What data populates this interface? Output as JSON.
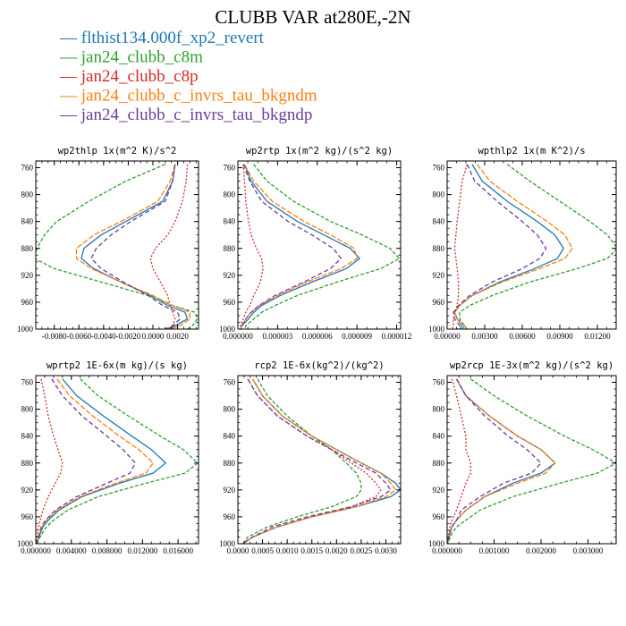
{
  "title": "CLUBB VAR at280E,-2N",
  "legend": [
    {
      "marker": "—",
      "label": "flthist134.000f_xp2_revert",
      "color": "#1f77b4"
    },
    {
      "marker": "—",
      "label": "jan24_clubb_c8m",
      "color": "#2ca02c"
    },
    {
      "marker": "—",
      "label": "jan24_clubb_c8p",
      "color": "#d62728"
    },
    {
      "marker": "—",
      "label": "jan24_clubb_c_invrs_tau_bkgndm",
      "color": "#ff7f0e"
    },
    {
      "marker": "—",
      "label": "jan24_clubb_c_invrs_tau_bkgndp",
      "color": "#6a3d9a"
    }
  ],
  "chart_data": [
    {
      "type": "line",
      "title": "wp2thlp  1x(m^2 K)/s^2",
      "xlim": [
        -0.0095,
        0.0037
      ],
      "ylim": [
        1000,
        750
      ],
      "xticks": [
        -0.008,
        -0.006,
        -0.004,
        -0.002,
        0.0,
        0.002
      ],
      "xtick_labels": [
        "-0.0080",
        "-0.0060",
        "-0.0040",
        "-0.0020",
        "0.0000",
        "0.0020"
      ],
      "yticks": [
        760,
        800,
        840,
        880,
        920,
        960,
        1000
      ],
      "ytick_labels": [
        "760",
        "800",
        "840",
        "880",
        "920",
        "960",
        "1000"
      ],
      "y": [
        755,
        780,
        810,
        840,
        860,
        880,
        895,
        910,
        930,
        950,
        965,
        975,
        985,
        995,
        1000
      ],
      "series": [
        {
          "x": [
            0.0018,
            0.0016,
            0.0008,
            -0.0022,
            -0.0042,
            -0.0056,
            -0.0058,
            -0.0048,
            -0.0026,
            -0.0002,
            0.0012,
            0.0026,
            0.0028,
            0.0018,
            0.0012
          ],
          "color": "#1f77b4",
          "dash": ""
        },
        {
          "x": [
            0.001,
            -0.0022,
            -0.0052,
            -0.0078,
            -0.0088,
            -0.0094,
            -0.0096,
            -0.008,
            -0.0042,
            -0.0004,
            0.0016,
            0.0034,
            0.0036,
            0.0032,
            0.0028
          ],
          "color": "#2ca02c",
          "dash": "4,2"
        },
        {
          "x": [
            0.0028,
            0.0027,
            0.0024,
            0.0018,
            0.0012,
            0.0002,
            -0.0002,
            0.0,
            0.0006,
            0.0012,
            0.0014,
            0.0016,
            0.0018,
            0.0016,
            0.0012
          ],
          "color": "#d62728",
          "dash": "2,2"
        },
        {
          "x": [
            0.0018,
            0.0014,
            0.0004,
            -0.0026,
            -0.0048,
            -0.0062,
            -0.0062,
            -0.005,
            -0.0026,
            0.0,
            0.0016,
            0.003,
            0.003,
            0.0022,
            0.0014
          ],
          "color": "#ff7f0e",
          "dash": "6,2"
        },
        {
          "x": [
            0.0018,
            0.0016,
            0.001,
            -0.0018,
            -0.0034,
            -0.0046,
            -0.005,
            -0.0042,
            -0.0024,
            -0.0004,
            0.0008,
            0.002,
            0.0022,
            0.0016,
            0.001
          ],
          "color": "#6a3d9a",
          "dash": "5,3"
        }
      ]
    },
    {
      "type": "line",
      "title": "wp2rtp  1x(m^2 kg)/(s^2 kg)",
      "xlim": [
        0.0,
        1.23e-05
      ],
      "ylim": [
        1000,
        750
      ],
      "xticks": [
        0.0,
        3e-06,
        6e-06,
        9e-06,
        1.2e-05
      ],
      "xtick_labels": [
        "0.000000",
        "0.000003",
        "0.000006",
        "0.000009",
        "0.000012"
      ],
      "yticks": [
        760,
        800,
        840,
        880,
        920,
        960,
        1000
      ],
      "ytick_labels": [
        "760",
        "800",
        "840",
        "880",
        "920",
        "960",
        "1000"
      ],
      "y": [
        755,
        780,
        810,
        840,
        860,
        880,
        895,
        910,
        930,
        950,
        965,
        975,
        985,
        995,
        1000
      ],
      "series": [
        {
          "x": [
            5e-07,
            1e-06,
            2.2e-06,
            4.5e-06,
            6.5e-06,
            8.5e-06,
            9.2e-06,
            8.2e-06,
            5.6e-06,
            3.2e-06,
            1.8e-06,
            1.2e-06,
            8e-07,
            3e-07,
            2e-07
          ],
          "color": "#1f77b4",
          "dash": ""
        },
        {
          "x": [
            1.2e-06,
            2.2e-06,
            4.2e-06,
            7e-06,
            9.4e-06,
            1.15e-05,
            1.22e-05,
            1.08e-05,
            7.5e-06,
            4.5e-06,
            2.8e-06,
            1.8e-06,
            1.2e-06,
            6e-07,
            5e-07
          ],
          "color": "#2ca02c",
          "dash": "4,2"
        },
        {
          "x": [
            4e-07,
            5e-07,
            6e-07,
            8e-07,
            1e-06,
            1.4e-06,
            1.8e-06,
            1.9e-06,
            1.7e-06,
            1.2e-06,
            9e-07,
            6e-07,
            4e-07,
            2e-07,
            2e-07
          ],
          "color": "#d62728",
          "dash": "2,2"
        },
        {
          "x": [
            5e-07,
            1.2e-06,
            2.6e-06,
            5e-06,
            7e-06,
            8.8e-06,
            9e-06,
            7.8e-06,
            5.2e-06,
            3e-06,
            1.6e-06,
            1e-06,
            6e-07,
            3e-07,
            2e-07
          ],
          "color": "#ff7f0e",
          "dash": "6,2"
        },
        {
          "x": [
            4e-07,
            9e-07,
            1.8e-06,
            3.8e-06,
            5.6e-06,
            7.2e-06,
            7.8e-06,
            7e-06,
            5e-06,
            2.8e-06,
            1.6e-06,
            1e-06,
            6e-07,
            3e-07,
            2e-07
          ],
          "color": "#6a3d9a",
          "dash": "5,3"
        }
      ]
    },
    {
      "type": "line",
      "title": "wpthlp2  1x(m K^2)/s",
      "xlim": [
        0.0,
        0.0135
      ],
      "ylim": [
        1000,
        750
      ],
      "xticks": [
        0.0,
        0.003,
        0.006,
        0.009,
        0.012
      ],
      "xtick_labels": [
        "0.00000",
        "0.00300",
        "0.00600",
        "0.00900",
        "0.01200"
      ],
      "yticks": [
        760,
        800,
        840,
        880,
        920,
        960,
        1000
      ],
      "ytick_labels": [
        "760",
        "800",
        "840",
        "880",
        "920",
        "960",
        "1000"
      ],
      "y": [
        755,
        780,
        810,
        840,
        860,
        880,
        895,
        910,
        930,
        950,
        965,
        975,
        985,
        995,
        1000
      ],
      "series": [
        {
          "x": [
            0.002,
            0.0028,
            0.0048,
            0.0072,
            0.0086,
            0.0093,
            0.0088,
            0.007,
            0.0042,
            0.002,
            0.001,
            0.0006,
            0.0008,
            0.0012,
            0.001
          ],
          "color": "#1f77b4",
          "dash": ""
        },
        {
          "x": [
            0.0048,
            0.0066,
            0.009,
            0.0114,
            0.0128,
            0.0136,
            0.0128,
            0.0104,
            0.0066,
            0.0036,
            0.0018,
            0.001,
            0.001,
            0.0014,
            0.0012
          ],
          "color": "#2ca02c",
          "dash": "4,2"
        },
        {
          "x": [
            0.0016,
            0.0012,
            0.001,
            0.0008,
            0.0007,
            0.0006,
            0.0007,
            0.0008,
            0.0009,
            0.0009,
            0.0008,
            0.0006,
            0.0005,
            0.0005,
            0.0004
          ],
          "color": "#d62728",
          "dash": "2,2"
        },
        {
          "x": [
            0.0024,
            0.0034,
            0.0056,
            0.008,
            0.0094,
            0.01,
            0.0094,
            0.0074,
            0.0044,
            0.002,
            0.001,
            0.0006,
            0.0008,
            0.0014,
            0.0016
          ],
          "color": "#ff7f0e",
          "dash": "6,2"
        },
        {
          "x": [
            0.0016,
            0.0022,
            0.004,
            0.006,
            0.0072,
            0.0079,
            0.0074,
            0.006,
            0.0036,
            0.0018,
            0.0009,
            0.0005,
            0.0006,
            0.001,
            0.0008
          ],
          "color": "#6a3d9a",
          "dash": "5,3"
        }
      ]
    },
    {
      "type": "line",
      "title": "wprtp2  1E-6x(m kg)/(s kg)",
      "xlim": [
        0.0,
        0.0183
      ],
      "ylim": [
        1000,
        750
      ],
      "xticks": [
        0.0,
        0.004,
        0.008,
        0.012,
        0.016
      ],
      "xtick_labels": [
        "0.000000",
        "0.004000",
        "0.008000",
        "0.012000",
        "0.016000"
      ],
      "yticks": [
        760,
        800,
        840,
        880,
        920,
        960,
        1000
      ],
      "ytick_labels": [
        "760",
        "800",
        "840",
        "880",
        "920",
        "960",
        "1000"
      ],
      "y": [
        755,
        780,
        810,
        840,
        860,
        880,
        895,
        910,
        930,
        950,
        965,
        975,
        985,
        995,
        1000
      ],
      "series": [
        {
          "x": [
            0.003,
            0.0046,
            0.0076,
            0.0108,
            0.013,
            0.0146,
            0.0132,
            0.0094,
            0.0052,
            0.0026,
            0.0014,
            0.0008,
            0.0005,
            0.0002,
            0.0001
          ],
          "color": "#1f77b4",
          "dash": ""
        },
        {
          "x": [
            0.005,
            0.007,
            0.0104,
            0.014,
            0.0166,
            0.0182,
            0.0168,
            0.0124,
            0.007,
            0.0036,
            0.002,
            0.0012,
            0.0007,
            0.0003,
            0.0002
          ],
          "color": "#2ca02c",
          "dash": "4,2"
        },
        {
          "x": [
            0.0006,
            0.001,
            0.0014,
            0.002,
            0.0025,
            0.003,
            0.0028,
            0.0022,
            0.0014,
            0.0008,
            0.0005,
            0.0003,
            0.0002,
            0.0001,
            0.0001
          ],
          "color": "#d62728",
          "dash": "2,2"
        },
        {
          "x": [
            0.0024,
            0.0038,
            0.0064,
            0.0094,
            0.0116,
            0.0132,
            0.0124,
            0.009,
            0.005,
            0.0024,
            0.0012,
            0.0007,
            0.0004,
            0.0002,
            0.0001
          ],
          "color": "#ff7f0e",
          "dash": "6,2"
        },
        {
          "x": [
            0.0018,
            0.003,
            0.0052,
            0.008,
            0.0098,
            0.0112,
            0.0106,
            0.008,
            0.0046,
            0.0022,
            0.0011,
            0.0006,
            0.0004,
            0.0002,
            0.0001
          ],
          "color": "#6a3d9a",
          "dash": "5,3"
        }
      ]
    },
    {
      "type": "line",
      "title": "rcp2  1E-6x(kg^2)/(kg^2)",
      "xlim": [
        0.0,
        0.0033
      ],
      "ylim": [
        1000,
        750
      ],
      "xticks": [
        0.0,
        0.0005,
        0.001,
        0.0015,
        0.002,
        0.0025,
        0.003
      ],
      "xtick_labels": [
        "0.0000",
        "0.0005",
        "0.0010",
        "0.0015",
        "0.0020",
        "0.0025",
        "0.0030"
      ],
      "yticks": [
        760,
        800,
        840,
        880,
        920,
        960,
        1000
      ],
      "ytick_labels": [
        "760",
        "800",
        "840",
        "880",
        "920",
        "960",
        "1000"
      ],
      "y": [
        755,
        780,
        810,
        840,
        860,
        880,
        895,
        910,
        920,
        930,
        945,
        960,
        975,
        990,
        1000
      ],
      "series": [
        {
          "x": [
            0.0003,
            0.0005,
            0.0009,
            0.0015,
            0.002,
            0.0025,
            0.0029,
            0.0032,
            0.0033,
            0.0031,
            0.0024,
            0.0015,
            0.0008,
            0.0003,
            0.0001
          ],
          "color": "#1f77b4",
          "dash": ""
        },
        {
          "x": [
            0.0004,
            0.0006,
            0.001,
            0.0015,
            0.0019,
            0.0022,
            0.0024,
            0.0025,
            0.0025,
            0.0024,
            0.0019,
            0.0012,
            0.0006,
            0.0002,
            0.0001
          ],
          "color": "#2ca02c",
          "dash": "4,2"
        },
        {
          "x": [
            0.0002,
            0.0004,
            0.0008,
            0.0014,
            0.0019,
            0.0023,
            0.0026,
            0.0028,
            0.0029,
            0.0028,
            0.0023,
            0.0015,
            0.0008,
            0.0003,
            0.0001
          ],
          "color": "#d62728",
          "dash": "2,2"
        },
        {
          "x": [
            0.0003,
            0.0005,
            0.0009,
            0.0015,
            0.002,
            0.0025,
            0.0029,
            0.0031,
            0.0032,
            0.003,
            0.0024,
            0.0015,
            0.0008,
            0.0003,
            0.0001
          ],
          "color": "#ff7f0e",
          "dash": "6,2"
        },
        {
          "x": [
            0.0002,
            0.0004,
            0.0008,
            0.0014,
            0.0019,
            0.0024,
            0.0028,
            0.003,
            0.0031,
            0.0029,
            0.0023,
            0.0014,
            0.0007,
            0.0003,
            0.0001
          ],
          "color": "#6a3d9a",
          "dash": "5,3"
        }
      ]
    },
    {
      "type": "line",
      "title": "wp2rcp  1E-3x(m^2 kg)/(s^2 kg)",
      "xlim": [
        0.0,
        0.0036
      ],
      "ylim": [
        1000,
        750
      ],
      "xticks": [
        0.0,
        0.001,
        0.002,
        0.003
      ],
      "xtick_labels": [
        "0.000000",
        "0.001000",
        "0.002000",
        "0.003000"
      ],
      "yticks": [
        760,
        800,
        840,
        880,
        920,
        960,
        1000
      ],
      "ytick_labels": [
        "760",
        "800",
        "840",
        "880",
        "920",
        "960",
        "1000"
      ],
      "y": [
        755,
        780,
        810,
        840,
        860,
        880,
        895,
        910,
        930,
        950,
        965,
        975,
        985,
        995,
        1000
      ],
      "series": [
        {
          "x": [
            0.0002,
            0.0004,
            0.0009,
            0.0015,
            0.002,
            0.0023,
            0.002,
            0.0014,
            0.0008,
            0.0004,
            0.0002,
            0.0001,
            6e-05,
            2e-05,
            1e-05
          ],
          "color": "#1f77b4",
          "dash": ""
        },
        {
          "x": [
            0.0005,
            0.001,
            0.0017,
            0.0025,
            0.0031,
            0.0036,
            0.0032,
            0.0024,
            0.0014,
            0.0007,
            0.0004,
            0.0002,
            0.0001,
            4e-05,
            2e-05
          ],
          "color": "#2ca02c",
          "dash": "4,2"
        },
        {
          "x": [
            0.0001,
            0.0002,
            0.0003,
            0.0004,
            0.0004,
            0.0005,
            0.0005,
            0.0004,
            0.0003,
            0.0002,
            0.0001,
            6e-05,
            3e-05,
            1e-05,
            1e-05
          ],
          "color": "#d62728",
          "dash": "2,2"
        },
        {
          "x": [
            0.0002,
            0.0004,
            0.0009,
            0.0015,
            0.002,
            0.0023,
            0.0021,
            0.0015,
            0.0008,
            0.0004,
            0.0002,
            0.0001,
            6e-05,
            2e-05,
            1e-05
          ],
          "color": "#ff7f0e",
          "dash": "6,2"
        },
        {
          "x": [
            0.0002,
            0.0004,
            0.0008,
            0.0013,
            0.0017,
            0.002,
            0.0018,
            0.0012,
            0.0007,
            0.0003,
            0.0002,
            0.0001,
            5e-05,
            2e-05,
            1e-05
          ],
          "color": "#6a3d9a",
          "dash": "5,3"
        }
      ]
    }
  ]
}
